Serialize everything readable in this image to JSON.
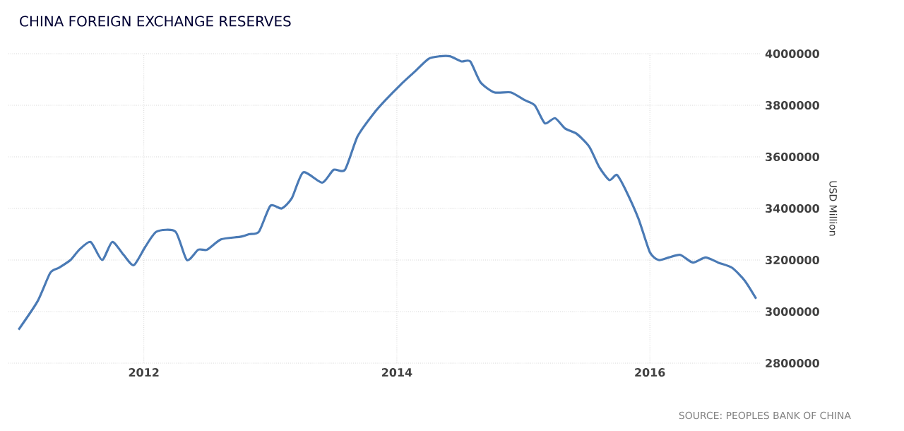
{
  "chart_data": {
    "type": "line",
    "title": "CHINA FOREIGN EXCHANGE RESERVES",
    "ylabel": "USD Million",
    "annotations": [
      "SOURCE: PEOPLES BANK OF CHINA"
    ],
    "x": [
      2011.01,
      2011.16,
      2011.26,
      2011.33,
      2011.42,
      2011.49,
      2011.58,
      2011.67,
      2011.75,
      2011.84,
      2011.92,
      2012.01,
      2012.1,
      2012.25,
      2012.34,
      2012.43,
      2012.5,
      2012.61,
      2012.76,
      2012.83,
      2012.91,
      2013.0,
      2013.09,
      2013.17,
      2013.26,
      2013.41,
      2013.5,
      2013.59,
      2013.69,
      2013.82,
      2013.91,
      2014.03,
      2014.14,
      2014.25,
      2014.34,
      2014.42,
      2014.51,
      2014.58,
      2014.66,
      2014.77,
      2014.9,
      2015.01,
      2015.09,
      2015.17,
      2015.25,
      2015.33,
      2015.42,
      2015.52,
      2015.6,
      2015.68,
      2015.74,
      2015.81,
      2015.91,
      2016.0,
      2016.07,
      2016.15,
      2016.24,
      2016.34,
      2016.44,
      2016.54,
      2016.65,
      2016.75,
      2016.84
    ],
    "series": [
      {
        "color": "#4a7ab5",
        "values": [
          2930000,
          3040000,
          3150000,
          3170000,
          3200000,
          3240000,
          3270000,
          3200000,
          3270000,
          3220000,
          3180000,
          3250000,
          3310000,
          3310000,
          3200000,
          3240000,
          3240000,
          3280000,
          3290000,
          3300000,
          3310000,
          3410000,
          3400000,
          3440000,
          3540000,
          3500000,
          3550000,
          3550000,
          3680000,
          3770000,
          3820000,
          3880000,
          3930000,
          3980000,
          3990000,
          3990000,
          3970000,
          3970000,
          3890000,
          3850000,
          3850000,
          3820000,
          3800000,
          3730000,
          3750000,
          3710000,
          3690000,
          3640000,
          3560000,
          3510000,
          3530000,
          3470000,
          3360000,
          3230000,
          3200000,
          3210000,
          3220000,
          3190000,
          3210000,
          3190000,
          3170000,
          3120000,
          3050000
        ]
      }
    ],
    "xlim": [
      2010.93,
      2016.87
    ],
    "ylim": [
      2800000,
      4000000
    ],
    "xticks": [
      2012,
      2014,
      2016
    ],
    "yticks": [
      2800000,
      3000000,
      3200000,
      3400000,
      3600000,
      3800000,
      4000000
    ],
    "grid": true
  }
}
